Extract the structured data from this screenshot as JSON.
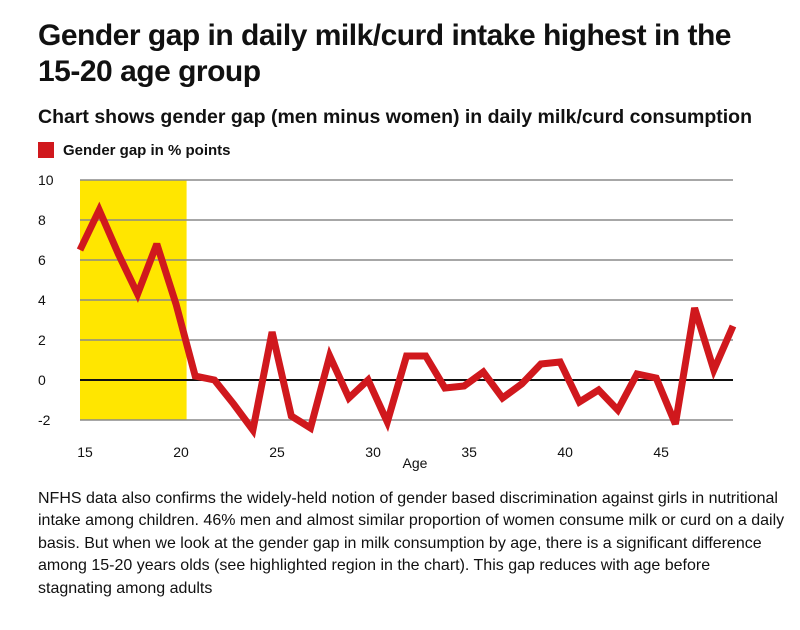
{
  "title": "Gender gap in daily milk/curd intake highest in the 15-20 age group",
  "subtitle": "Chart shows gender gap (men minus women) in daily milk/curd consumption",
  "description": "NFHS data also confirms the widely-held notion of gender based discrimination against girls in nutritional intake among children. 46% men and almost similar proportion of women consume milk or curd on a daily basis. But when we look at the gender gap in milk consumption by age, there is a significant difference among 15-20 years olds (see highlighted region in the chart). This gap reduces with age before stagnating among adults",
  "colors": {
    "series": "#d0181d",
    "highlight": "#ffe600",
    "grid": "#8a8a8a",
    "zero_line": "#111111"
  },
  "chart_data": {
    "type": "line",
    "xlabel": "Age",
    "ylabel": "",
    "x_ticks": [
      15,
      20,
      25,
      30,
      35,
      40,
      45
    ],
    "y_ticks": [
      -2,
      0,
      2,
      4,
      6,
      8,
      10
    ],
    "xlim": [
      15,
      49
    ],
    "ylim": [
      -2,
      10
    ],
    "grid": true,
    "highlight_range": [
      15,
      20
    ],
    "legend_position": "top-left",
    "series": [
      {
        "name": "Gender gap in % points",
        "x": [
          15,
          16,
          17,
          18,
          19,
          20,
          21,
          22,
          23,
          24,
          25,
          26,
          27,
          28,
          29,
          30,
          31,
          32,
          33,
          34,
          35,
          36,
          37,
          38,
          39,
          40,
          41,
          42,
          43,
          44,
          45,
          46,
          47,
          48,
          49
        ],
        "values": [
          6.5,
          8.5,
          6.3,
          4.3,
          6.8,
          3.8,
          0.2,
          0.0,
          -1.2,
          -2.5,
          2.4,
          -1.8,
          -2.4,
          1.2,
          -0.9,
          0.0,
          -2.1,
          1.2,
          1.2,
          -0.4,
          -0.3,
          0.4,
          -0.9,
          -0.2,
          0.8,
          0.9,
          -1.1,
          -0.5,
          -1.5,
          0.3,
          0.1,
          -2.2,
          3.6,
          0.5,
          2.7
        ]
      }
    ]
  }
}
